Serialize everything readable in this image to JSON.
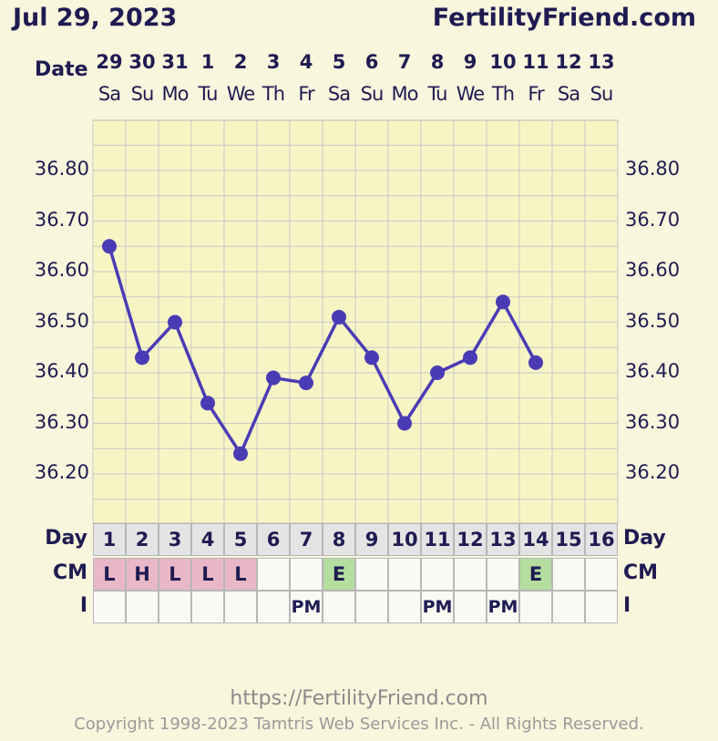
{
  "header": {
    "date": "Jul 29, 2023",
    "site": "FertilityFriend.com",
    "date_label": "Date"
  },
  "chart_data": {
    "type": "line",
    "title": "",
    "x": [
      "29",
      "30",
      "31",
      "1",
      "2",
      "3",
      "4",
      "5",
      "6",
      "7",
      "8",
      "9",
      "10",
      "11",
      "12",
      "13"
    ],
    "weekdays": [
      "Sa",
      "Su",
      "Mo",
      "Tu",
      "We",
      "Th",
      "Fr",
      "Sa",
      "Su",
      "Mo",
      "Tu",
      "We",
      "Th",
      "Fr",
      "Sa",
      "Su"
    ],
    "cycle_days": [
      "1",
      "2",
      "3",
      "4",
      "5",
      "6",
      "7",
      "8",
      "9",
      "10",
      "11",
      "12",
      "13",
      "14",
      "15",
      "16"
    ],
    "series": [
      {
        "values": [
          36.65,
          36.43,
          36.5,
          36.34,
          36.24,
          36.39,
          36.38,
          36.51,
          36.43,
          36.3,
          36.4,
          36.43,
          36.54,
          36.42,
          null,
          null
        ]
      }
    ],
    "yticks": [
      "36.80",
      "36.70",
      "36.60",
      "36.50",
      "36.40",
      "36.30",
      "36.20"
    ],
    "ylim": [
      36.1,
      36.9
    ],
    "grid": true,
    "line_color": "#4a3bb5",
    "grid_color": "#c8c8c8",
    "background": "#f7f5c4"
  },
  "rows": {
    "day_label": "Day",
    "cm_label": "CM",
    "i_label": "I",
    "cm": [
      "L",
      "H",
      "L",
      "L",
      "L",
      "",
      "",
      "E",
      "",
      "",
      "",
      "",
      "",
      "E",
      "",
      ""
    ],
    "i": [
      "",
      "",
      "",
      "",
      "",
      "",
      "PM",
      "",
      "",
      "",
      "PM",
      "",
      "PM",
      "",
      "",
      ""
    ]
  },
  "footer": {
    "url": "https://FertilityFriend.com",
    "copyright": "Copyright 1998-2023 Tamtris Web Services Inc. - All Rights Reserved."
  }
}
